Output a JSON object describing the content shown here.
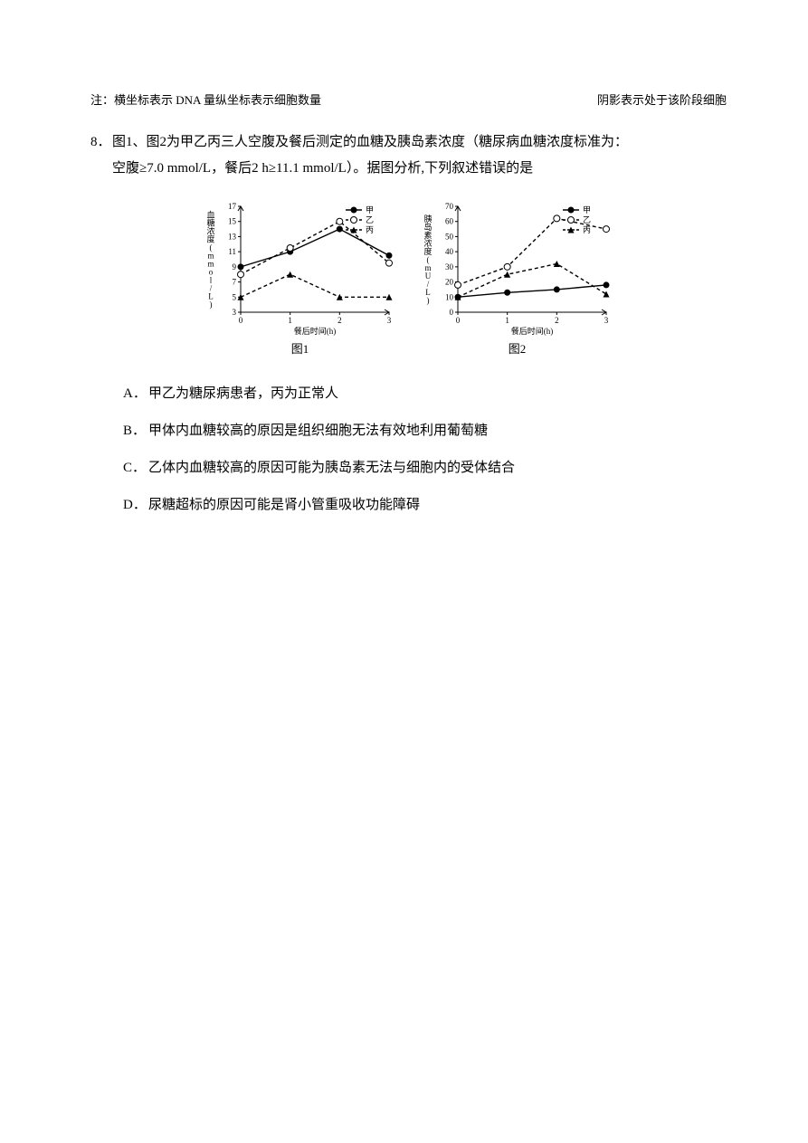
{
  "notes": {
    "left": "注：横坐标表示 DNA 量纵坐标表示细胞数量",
    "right": "阴影表示处于该阶段细胞"
  },
  "question": {
    "number": "8．",
    "stem_l1": "图1、图2为甲乙丙三人空腹及餐后测定的血糖及胰岛素浓度（糖尿病血糖浓度标准为：",
    "stem_l2": "空腹≥7.0 mmol/L，餐后2 h≥11.1 mmol/L）。据图分析,下列叙述错误的是"
  },
  "options": {
    "a": "甲乙为糖尿病患者，丙为正常人",
    "b": "甲体内血糖较高的原因是组织细胞无法有效地利用葡萄糖",
    "c": "乙体内血糖较高的原因可能为胰岛素无法与细胞内的受体结合",
    "d": "尿糖超标的原因可能是肾小管重吸收功能障碍"
  },
  "chart1": {
    "caption": "图1",
    "ylabel": "血糖浓度(mmol/L)",
    "xlabel": "餐后时间(h)",
    "yticks": [
      3,
      5,
      7,
      9,
      11,
      13,
      15,
      17
    ],
    "xticks": [
      0,
      1,
      2,
      3
    ],
    "ylim": [
      3,
      17
    ],
    "xlim": [
      0,
      3
    ],
    "legend": {
      "jia": "甲",
      "yi": "乙",
      "bing": "丙"
    },
    "series": {
      "jia": {
        "x": [
          0,
          1,
          2,
          3
        ],
        "y": [
          9,
          11,
          14,
          10.5
        ],
        "marker": "circle-fill",
        "dash": "solid"
      },
      "yi": {
        "x": [
          0,
          1,
          2,
          3
        ],
        "y": [
          8,
          11.5,
          15,
          9.5
        ],
        "marker": "circle-open",
        "dash": "dash"
      },
      "bing": {
        "x": [
          0,
          1,
          2,
          3
        ],
        "y": [
          5,
          8,
          5,
          5
        ],
        "marker": "triangle",
        "dash": "dash"
      }
    },
    "colors": {
      "line": "#000000",
      "bg": "#ffffff"
    },
    "line_width": 1.4,
    "marker_size": 3.5,
    "font_size": 9
  },
  "chart2": {
    "caption": "图2",
    "ylabel": "胰岛素浓度(mU/L)",
    "xlabel": "餐后时间(h)",
    "yticks": [
      0,
      10,
      20,
      30,
      40,
      50,
      60,
      70
    ],
    "xticks": [
      0,
      1,
      2,
      3
    ],
    "ylim": [
      0,
      70
    ],
    "xlim": [
      0,
      3
    ],
    "legend": {
      "jia": "甲",
      "yi": "乙",
      "bing": "丙"
    },
    "series": {
      "jia": {
        "x": [
          0,
          1,
          2,
          3
        ],
        "y": [
          10,
          13,
          15,
          18
        ],
        "marker": "circle-fill",
        "dash": "solid"
      },
      "yi": {
        "x": [
          0,
          1,
          2,
          3
        ],
        "y": [
          18,
          30,
          62,
          55
        ],
        "marker": "circle-open",
        "dash": "dash"
      },
      "bing": {
        "x": [
          0,
          1,
          2,
          3
        ],
        "y": [
          10,
          25,
          32,
          12
        ],
        "marker": "triangle",
        "dash": "dash"
      }
    },
    "colors": {
      "line": "#000000",
      "bg": "#ffffff"
    },
    "line_width": 1.4,
    "marker_size": 3.5,
    "font_size": 9
  }
}
